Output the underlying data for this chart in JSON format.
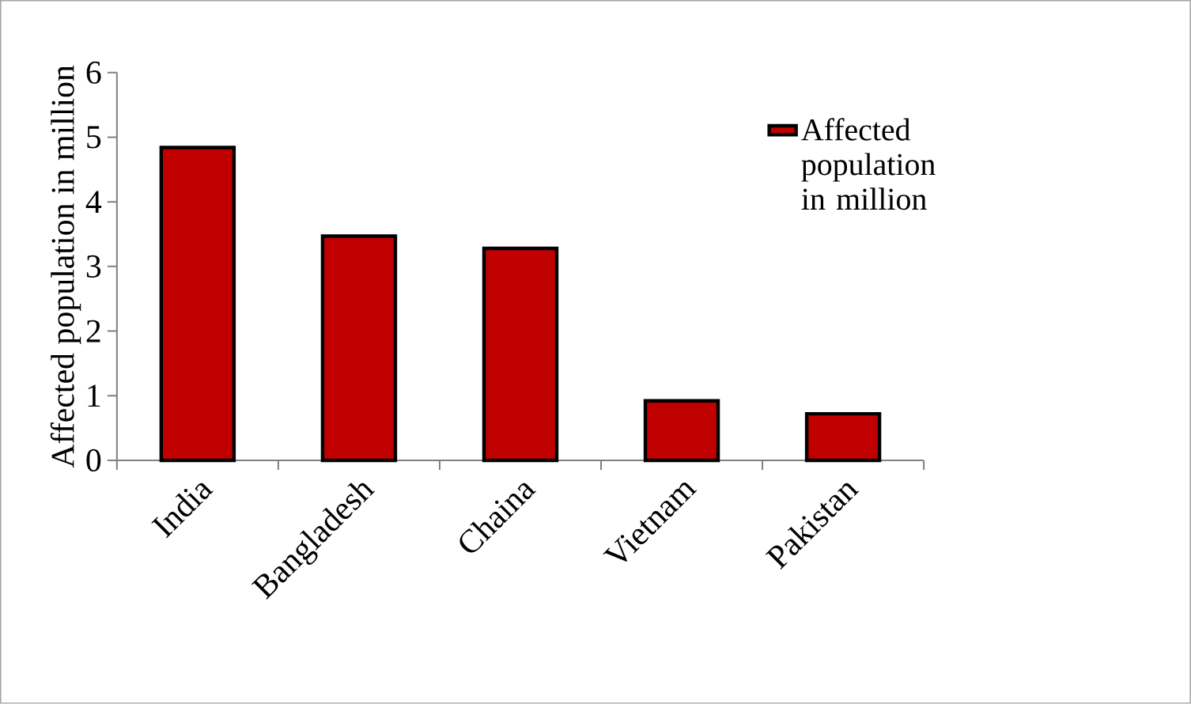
{
  "chart_data": {
    "type": "bar",
    "ylabel": "Affected population in million",
    "categories": [
      "India",
      "Bangladesh",
      "Chaina",
      "Vietnam",
      "Pakistan"
    ],
    "series": [
      {
        "name": "Affected population in million",
        "color": "#c00000",
        "values": [
          4.84,
          3.47,
          3.28,
          0.92,
          0.72
        ]
      }
    ],
    "ylim": [
      0,
      6
    ],
    "yticks": [
      0,
      1,
      2,
      3,
      4,
      5,
      6
    ],
    "legend": "top right",
    "grid": false
  }
}
